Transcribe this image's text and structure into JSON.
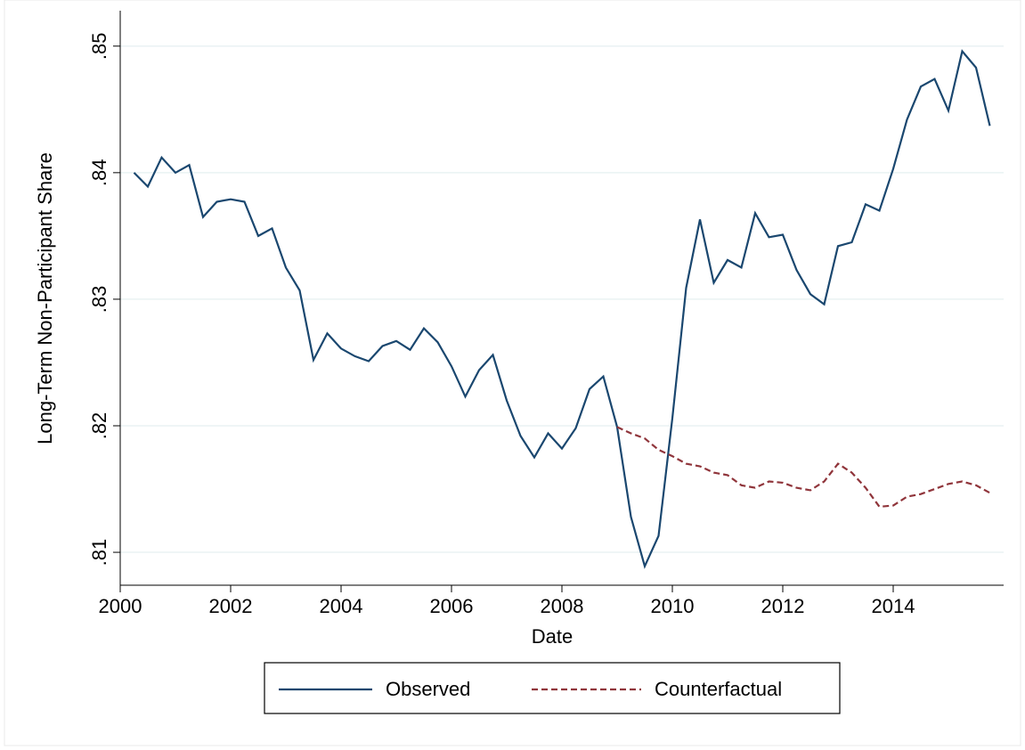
{
  "chart_data": {
    "type": "line",
    "xlabel": "Date",
    "ylabel": "Long-Term Non-Participant Share",
    "x": [
      2000.25,
      2000.5,
      2000.75,
      2001,
      2001.25,
      2001.5,
      2001.75,
      2002,
      2002.25,
      2002.5,
      2002.75,
      2003,
      2003.25,
      2003.5,
      2003.75,
      2004,
      2004.25,
      2004.5,
      2004.75,
      2005,
      2005.25,
      2005.5,
      2005.75,
      2006,
      2006.25,
      2006.5,
      2006.75,
      2007,
      2007.25,
      2007.5,
      2007.75,
      2008,
      2008.25,
      2008.5,
      2008.75,
      2009,
      2009.25,
      2009.5,
      2009.75,
      2010,
      2010.25,
      2010.5,
      2010.75,
      2011,
      2011.25,
      2011.5,
      2011.75,
      2012,
      2012.25,
      2012.5,
      2012.75,
      2013,
      2013.25,
      2013.5,
      2013.75,
      2014,
      2014.25,
      2014.5,
      2014.75,
      2015,
      2015.25,
      2015.5,
      2015.75
    ],
    "series": [
      {
        "name": "Observed",
        "color": "#1a476f",
        "dash": false,
        "values": [
          0.84,
          0.8389,
          0.8412,
          0.84,
          0.8406,
          0.8365,
          0.8377,
          0.8379,
          0.8377,
          0.835,
          0.8356,
          0.8325,
          0.8307,
          0.8252,
          0.8273,
          0.8261,
          0.8255,
          0.8251,
          0.8263,
          0.8267,
          0.826,
          0.8277,
          0.8266,
          0.8247,
          0.8223,
          0.8244,
          0.8256,
          0.822,
          0.8192,
          0.8175,
          0.8194,
          0.8182,
          0.8198,
          0.8229,
          0.8239,
          0.8199,
          0.8128,
          0.8089,
          0.8113,
          0.8206,
          0.8309,
          0.8363,
          0.8313,
          0.8331,
          0.8325,
          0.8368,
          0.8349,
          0.8351,
          0.8323,
          0.8304,
          0.8296,
          0.8342,
          0.8345,
          0.8375,
          0.837,
          0.8403,
          0.8442,
          0.8468,
          0.8474,
          0.8449,
          0.8496,
          0.8483,
          0.8437
        ]
      },
      {
        "name": "Counterfactual",
        "color": "#90353b",
        "dash": true,
        "values": [
          null,
          null,
          null,
          null,
          null,
          null,
          null,
          null,
          null,
          null,
          null,
          null,
          null,
          null,
          null,
          null,
          null,
          null,
          null,
          null,
          null,
          null,
          null,
          null,
          null,
          null,
          null,
          null,
          null,
          null,
          null,
          null,
          null,
          null,
          null,
          0.8199,
          0.8194,
          0.819,
          0.8181,
          0.8176,
          0.817,
          0.8168,
          0.8163,
          0.8161,
          0.8153,
          0.8151,
          0.8156,
          0.8155,
          0.8151,
          0.8149,
          0.8156,
          0.817,
          0.8163,
          0.8151,
          0.8136,
          0.8137,
          0.8144,
          0.8146,
          0.815,
          0.8154,
          0.8156,
          0.8153,
          0.8147
        ]
      }
    ],
    "xlim": [
      2000,
      2016
    ],
    "xticks": [
      2000,
      2002,
      2004,
      2006,
      2008,
      2010,
      2012,
      2014
    ],
    "ylim": [
      0.8074,
      0.8528
    ],
    "yticks": [
      {
        "value": 0.81,
        "label": ".81"
      },
      {
        "value": 0.82,
        "label": ".82"
      },
      {
        "value": 0.83,
        "label": ".83"
      },
      {
        "value": 0.84,
        "label": ".84"
      },
      {
        "value": 0.85,
        "label": ".85"
      }
    ],
    "grid": true
  }
}
